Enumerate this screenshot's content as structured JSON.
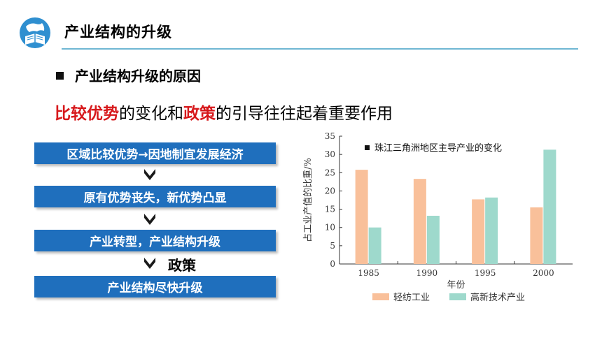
{
  "header": {
    "title": "产业结构的升级",
    "logo_icon": "globe-book-icon"
  },
  "section": {
    "heading": "产业结构升级的原因"
  },
  "subtitle": {
    "part1": "比较优势",
    "part2": "的变化和",
    "part3": "政策",
    "part4": "的引导往往起着重要作用"
  },
  "flow": {
    "step1": "区域比较优势→因地制宜发展经济",
    "step2": "原有优势丧失，新优势凸显",
    "step3": "产业转型，产业结构升级",
    "policy_label": "政策",
    "step4": "产业结构尽快升级"
  },
  "colors": {
    "accent_blue": "#1f6fbd",
    "highlight_red": "#d7191c",
    "rule": "#6fb7d3",
    "series_light": "#f9c09a",
    "series_hightech": "#9ed9cc"
  },
  "chart_data": {
    "type": "bar",
    "title": "珠江三角洲地区主导产业的变化",
    "xlabel": "年份",
    "ylabel": "占工业产值的比重/%",
    "categories": [
      "1985",
      "1990",
      "1995",
      "2000"
    ],
    "ylim": [
      0,
      35
    ],
    "yticks": [
      "0",
      "5",
      "10",
      "15",
      "20",
      "25",
      "30",
      "35"
    ],
    "series": [
      {
        "name": "轻纺工业",
        "values": [
          25.8,
          23.3,
          17.7,
          15.5
        ],
        "color": "#f9c09a"
      },
      {
        "name": "高新技术产业",
        "values": [
          10.0,
          13.2,
          18.2,
          31.3
        ],
        "color": "#9ed9cc"
      }
    ],
    "grid": false,
    "legend": "bottom"
  }
}
